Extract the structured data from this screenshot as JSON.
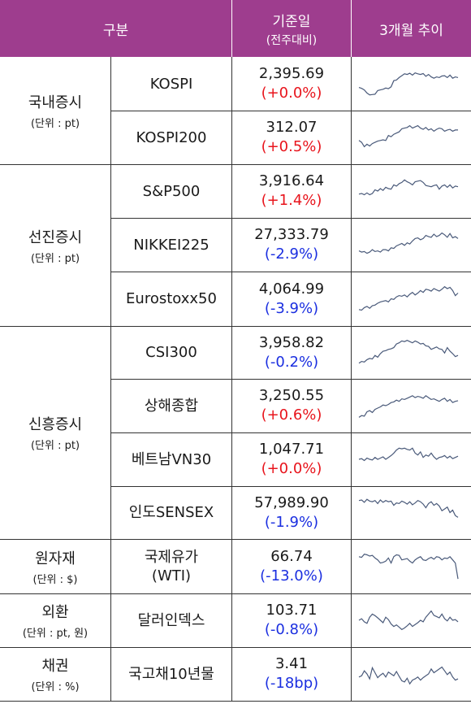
{
  "header": {
    "col1": "구분",
    "col2_line1": "기준일",
    "col2_line2": "(전주대비)",
    "col3": "3개월 추이"
  },
  "groups": [
    {
      "name": "국내증시",
      "unit": "(단위 : pt)"
    },
    {
      "name": "선진증시",
      "unit": "(단위 : pt)"
    },
    {
      "name": "신흥증시",
      "unit": "(단위 : pt)"
    },
    {
      "name": "원자재",
      "unit": "(단위 : $)"
    },
    {
      "name": "외환",
      "unit": "(단위 : pt, 원)"
    },
    {
      "name": "채권",
      "unit": "(단위 : %)"
    }
  ],
  "rows": [
    {
      "name": "KOSPI",
      "value": "2,395.69",
      "change": "(+0.0%)",
      "dir": "up"
    },
    {
      "name": "KOSPI200",
      "value": "312.07",
      "change": "(+0.5%)",
      "dir": "up"
    },
    {
      "name": "S&P500",
      "value": "3,916.64",
      "change": "(+1.4%)",
      "dir": "up"
    },
    {
      "name": "NIKKEI225",
      "value": "27,333.79",
      "change": "(-2.9%)",
      "dir": "down"
    },
    {
      "name": "Eurostoxx50",
      "value": "4,064.99",
      "change": "(-3.9%)",
      "dir": "down"
    },
    {
      "name": "CSI300",
      "value": "3,958.82",
      "change": "(-0.2%)",
      "dir": "down"
    },
    {
      "name": "상해종합",
      "value": "3,250.55",
      "change": "(+0.6%)",
      "dir": "up"
    },
    {
      "name": "베트남VN30",
      "value": "1,047.71",
      "change": "(+0.0%)",
      "dir": "up"
    },
    {
      "name": "인도SENSEX",
      "value": "57,989.90",
      "change": "(-1.9%)",
      "dir": "down"
    },
    {
      "name": "국제유가\n(WTI)",
      "value": "66.74",
      "change": "(-13.0%)",
      "dir": "down"
    },
    {
      "name": "달러인덱스",
      "value": "103.71",
      "change": "(-0.8%)",
      "dir": "down"
    },
    {
      "name": "국고채10년물",
      "value": "3.41",
      "change": "(-18bp)",
      "dir": "down"
    }
  ],
  "colors": {
    "header_bg": "#9e3d8e",
    "header_text": "#ffffff",
    "up": "#e8141c",
    "down": "#1b2fe0",
    "spark": "#4a5a7a"
  },
  "sparks": [
    [
      62,
      65,
      70,
      80,
      86,
      85,
      84,
      72,
      70,
      68,
      64,
      66,
      60,
      40,
      38,
      30,
      24,
      18,
      20,
      16,
      22,
      15,
      18,
      20,
      17,
      26,
      20,
      28,
      32,
      28,
      30,
      25,
      24,
      30,
      22,
      32,
      28,
      30
    ],
    [
      60,
      66,
      80,
      72,
      78,
      70,
      66,
      62,
      60,
      58,
      60,
      44,
      48,
      40,
      36,
      32,
      22,
      20,
      18,
      12,
      20,
      16,
      12,
      20,
      24,
      18,
      26,
      22,
      30,
      24,
      20,
      22,
      30,
      26,
      24,
      30,
      26,
      26
    ],
    [
      60,
      58,
      62,
      56,
      62,
      58,
      46,
      50,
      42,
      48,
      38,
      42,
      44,
      30,
      34,
      26,
      22,
      14,
      20,
      24,
      30,
      20,
      18,
      16,
      22,
      32,
      34,
      36,
      32,
      30,
      44,
      34,
      30,
      38,
      30,
      40,
      34,
      36
    ],
    [
      70,
      74,
      72,
      78,
      74,
      66,
      72,
      70,
      74,
      66,
      66,
      70,
      60,
      62,
      54,
      50,
      46,
      52,
      44,
      48,
      38,
      30,
      28,
      34,
      30,
      20,
      24,
      26,
      16,
      24,
      20,
      12,
      18,
      26,
      14,
      28,
      24,
      30
    ],
    [
      84,
      86,
      78,
      74,
      80,
      72,
      70,
      64,
      60,
      58,
      56,
      60,
      50,
      52,
      44,
      40,
      42,
      38,
      44,
      36,
      30,
      38,
      32,
      24,
      30,
      20,
      22,
      26,
      18,
      22,
      26,
      20,
      12,
      18,
      14,
      24,
      40,
      32
    ],
    [
      86,
      80,
      82,
      74,
      70,
      72,
      60,
      66,
      54,
      46,
      44,
      40,
      38,
      34,
      22,
      18,
      12,
      14,
      10,
      14,
      18,
      12,
      16,
      22,
      20,
      28,
      30,
      40,
      36,
      32,
      38,
      40,
      52,
      34,
      46,
      54,
      64,
      60
    ],
    [
      88,
      82,
      84,
      70,
      66,
      72,
      62,
      58,
      54,
      48,
      50,
      46,
      40,
      38,
      32,
      36,
      28,
      30,
      26,
      22,
      18,
      24,
      20,
      22,
      26,
      18,
      24,
      30,
      28,
      32,
      36,
      30,
      26,
      36,
      30,
      40,
      36,
      34
    ],
    [
      50,
      48,
      54,
      46,
      50,
      52,
      44,
      50,
      46,
      42,
      50,
      44,
      38,
      30,
      20,
      14,
      16,
      14,
      18,
      20,
      14,
      30,
      36,
      26,
      44,
      36,
      40,
      30,
      42,
      50,
      44,
      42,
      38,
      46,
      40,
      48,
      44,
      40
    ],
    [
      10,
      8,
      16,
      6,
      12,
      14,
      10,
      20,
      8,
      16,
      10,
      14,
      12,
      26,
      18,
      20,
      12,
      16,
      22,
      14,
      24,
      18,
      10,
      14,
      22,
      34,
      20,
      14,
      26,
      20,
      28,
      44,
      38,
      32,
      50,
      42,
      60,
      66
    ],
    [
      20,
      22,
      12,
      14,
      18,
      16,
      24,
      30,
      40,
      38,
      34,
      24,
      40,
      20,
      14,
      16,
      30,
      28,
      26,
      34,
      40,
      30,
      24,
      20,
      30,
      32,
      26,
      22,
      28,
      20,
      22,
      30,
      24,
      26,
      20,
      30,
      40,
      90
    ],
    [
      50,
      45,
      55,
      60,
      40,
      30,
      35,
      42,
      50,
      58,
      40,
      48,
      62,
      70,
      65,
      72,
      80,
      75,
      68,
      60,
      70,
      64,
      58,
      50,
      55,
      40,
      30,
      20,
      34,
      38,
      42,
      30,
      45,
      52,
      40,
      50,
      48,
      55
    ],
    [
      60,
      56,
      40,
      50,
      66,
      30,
      46,
      62,
      54,
      48,
      60,
      44,
      50,
      56,
      42,
      58,
      72,
      76,
      64,
      82,
      70,
      66,
      60,
      70,
      62,
      56,
      50,
      34,
      46,
      40,
      34,
      28,
      40,
      52,
      44,
      60,
      70,
      66
    ]
  ]
}
